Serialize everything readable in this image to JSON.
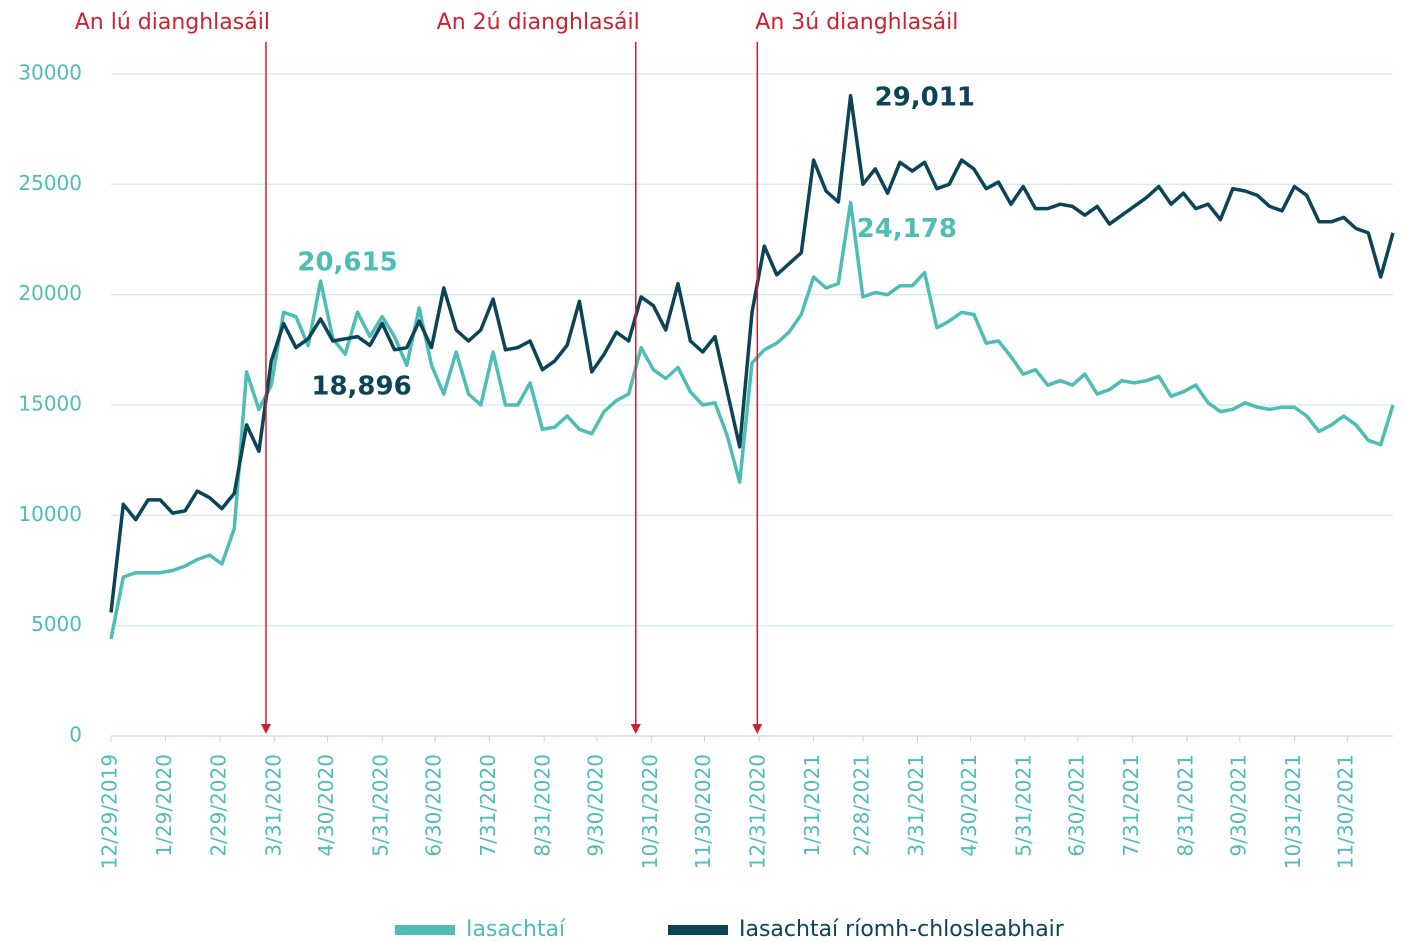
{
  "chart_data": {
    "type": "line",
    "x": [
      "2019-12-29",
      "2020-01-05",
      "2020-01-12",
      "2020-01-19",
      "2020-01-26",
      "2020-02-02",
      "2020-02-09",
      "2020-02-16",
      "2020-02-23",
      "2020-03-01",
      "2020-03-08",
      "2020-03-15",
      "2020-03-22",
      "2020-03-29",
      "2020-04-05",
      "2020-04-12",
      "2020-04-19",
      "2020-04-26",
      "2020-05-03",
      "2020-05-10",
      "2020-05-17",
      "2020-05-24",
      "2020-05-31",
      "2020-06-07",
      "2020-06-14",
      "2020-06-21",
      "2020-06-28",
      "2020-07-05",
      "2020-07-12",
      "2020-07-19",
      "2020-07-26",
      "2020-08-02",
      "2020-08-09",
      "2020-08-16",
      "2020-08-23",
      "2020-08-30",
      "2020-09-06",
      "2020-09-13",
      "2020-09-20",
      "2020-09-27",
      "2020-10-04",
      "2020-10-11",
      "2020-10-18",
      "2020-10-25",
      "2020-11-01",
      "2020-11-08",
      "2020-11-15",
      "2020-11-22",
      "2020-11-29",
      "2020-12-06",
      "2020-12-13",
      "2020-12-20",
      "2020-12-27",
      "2021-01-03",
      "2021-01-10",
      "2021-01-17",
      "2021-01-24",
      "2021-01-31",
      "2021-02-07",
      "2021-02-14",
      "2021-02-21",
      "2021-02-28",
      "2021-03-07",
      "2021-03-14",
      "2021-03-21",
      "2021-03-28",
      "2021-04-04",
      "2021-04-11",
      "2021-04-18",
      "2021-04-25",
      "2021-05-02",
      "2021-05-09",
      "2021-05-16",
      "2021-05-23",
      "2021-05-30",
      "2021-06-06",
      "2021-06-13",
      "2021-06-20",
      "2021-06-27",
      "2021-07-04",
      "2021-07-11",
      "2021-07-18",
      "2021-07-25",
      "2021-08-01",
      "2021-08-08",
      "2021-08-15",
      "2021-08-22",
      "2021-08-29",
      "2021-09-05",
      "2021-09-12",
      "2021-09-19",
      "2021-09-26",
      "2021-10-03",
      "2021-10-10",
      "2021-10-17",
      "2021-10-24",
      "2021-10-31",
      "2021-11-07",
      "2021-11-14",
      "2021-11-21",
      "2021-11-28",
      "2021-12-05",
      "2021-12-12",
      "2021-12-19",
      "2021-12-26"
    ],
    "series": [
      {
        "name": "Iasachtaí",
        "color": "#4dbdb5",
        "values": [
          4400,
          7200,
          7400,
          7400,
          7400,
          7500,
          7700,
          8000,
          8200,
          7800,
          9400,
          16500,
          14800,
          15900,
          19200,
          19000,
          17700,
          20615,
          18000,
          17300,
          19200,
          18100,
          19000,
          18100,
          16800,
          19400,
          16800,
          15500,
          17400,
          15500,
          15000,
          17400,
          15000,
          15000,
          16000,
          13900,
          14000,
          14500,
          13900,
          13700,
          14700,
          15200,
          15500,
          17600,
          16600,
          16200,
          16700,
          15600,
          15000,
          15100,
          13600,
          11500,
          16900,
          17500,
          17800,
          18300,
          19100,
          20800,
          20300,
          20500,
          24178,
          19900,
          20100,
          20000,
          20400,
          20400,
          21000,
          18500,
          18800,
          19200,
          19100,
          17800,
          17900,
          17200,
          16400,
          16600,
          15900,
          16100,
          15900,
          16400,
          15500,
          15700,
          16100,
          16000,
          16100,
          16300,
          15400,
          15600,
          15900,
          15100,
          14700,
          14800,
          15100,
          14900,
          14800,
          14900,
          14900,
          14500,
          13800,
          14100,
          14500,
          14100,
          13400,
          13200,
          15000
        ],
        "value_labels": {
          "17": "20,615",
          "60": "24,178"
        }
      },
      {
        "name": "Iasachtaí ríomh-chlosleabhair",
        "color": "#0b4457",
        "values": [
          5600,
          10500,
          9800,
          10700,
          10700,
          10100,
          10200,
          11100,
          10800,
          10300,
          11000,
          14100,
          12900,
          17000,
          18700,
          17600,
          18000,
          18896,
          17900,
          18000,
          18100,
          17700,
          18700,
          17500,
          17600,
          18800,
          17600,
          20300,
          18400,
          17900,
          18400,
          19800,
          17500,
          17600,
          17900,
          16600,
          17000,
          17700,
          19700,
          16500,
          17300,
          18300,
          17900,
          19900,
          19500,
          18400,
          20500,
          17900,
          17400,
          18100,
          15600,
          13100,
          19200,
          22200,
          20900,
          21400,
          21900,
          26100,
          24700,
          24200,
          29011,
          25000,
          25700,
          24600,
          26000,
          25600,
          26000,
          24800,
          25000,
          26100,
          25700,
          24800,
          25100,
          24100,
          24900,
          23900,
          23900,
          24100,
          24000,
          23600,
          24000,
          23200,
          23600,
          24000,
          24400,
          24900,
          24100,
          24600,
          23900,
          24100,
          23400,
          24800,
          24700,
          24500,
          24000,
          23800,
          24900,
          24500,
          23300,
          23300,
          23500,
          23000,
          22800,
          20800,
          22800
        ],
        "value_labels": {
          "17": "18,896",
          "60": "29,011"
        }
      }
    ],
    "xlim": [
      "2019-12-29",
      "2021-12-26"
    ],
    "xticks": [
      {
        "value": "2019-12-29",
        "label": "12/29/2019"
      },
      {
        "value": "2020-01-29",
        "label": "1/29/2020"
      },
      {
        "value": "2020-02-29",
        "label": "2/29/2020"
      },
      {
        "value": "2020-03-31",
        "label": "3/31/2020"
      },
      {
        "value": "2020-04-30",
        "label": "4/30/2020"
      },
      {
        "value": "2020-05-31",
        "label": "5/31/2020"
      },
      {
        "value": "2020-06-30",
        "label": "6/30/2020"
      },
      {
        "value": "2020-07-31",
        "label": "7/31/2020"
      },
      {
        "value": "2020-08-31",
        "label": "8/31/2020"
      },
      {
        "value": "2020-09-30",
        "label": "9/30/2020"
      },
      {
        "value": "2020-10-31",
        "label": "10/31/2020"
      },
      {
        "value": "2020-11-30",
        "label": "11/30/2020"
      },
      {
        "value": "2020-12-31",
        "label": "12/31/2020"
      },
      {
        "value": "2021-01-31",
        "label": "1/31/2021"
      },
      {
        "value": "2021-02-28",
        "label": "2/28/2021"
      },
      {
        "value": "2021-03-31",
        "label": "3/31/2021"
      },
      {
        "value": "2021-04-30",
        "label": "4/30/2021"
      },
      {
        "value": "2021-05-31",
        "label": "5/31/2021"
      },
      {
        "value": "2021-06-30",
        "label": "6/30/2021"
      },
      {
        "value": "2021-07-31",
        "label": "7/31/2021"
      },
      {
        "value": "2021-08-31",
        "label": "8/31/2021"
      },
      {
        "value": "2021-09-30",
        "label": "9/30/2021"
      },
      {
        "value": "2021-10-31",
        "label": "10/31/2021"
      },
      {
        "value": "2021-11-30",
        "label": "11/30/2021"
      }
    ],
    "ylim": [
      0,
      30000
    ],
    "yticks": [
      0,
      5000,
      10000,
      15000,
      20000,
      25000,
      30000
    ],
    "grid": true,
    "legend": "bottom",
    "annotations": [
      {
        "text": "An lú dianghlasáil",
        "x": "2020-03-26",
        "color": "#d0202f"
      },
      {
        "text": "An 2ú dianghlasáil",
        "x": "2020-10-22",
        "color": "#d0202f"
      },
      {
        "text": "An 3ú dianghlasáil",
        "x": "2020-12-30",
        "color": "#d0202f"
      }
    ]
  }
}
